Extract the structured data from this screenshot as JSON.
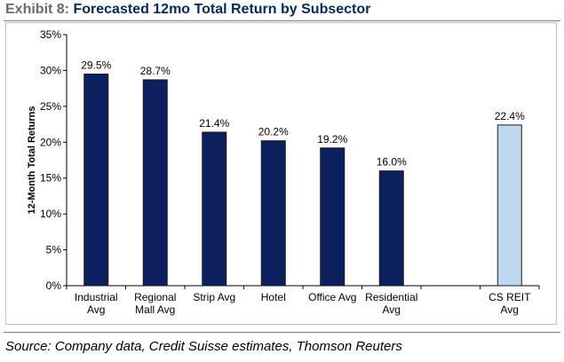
{
  "header": {
    "exhibit_label": "Exhibit 8:",
    "title": "Forecasted 12mo Total Return by Subsector"
  },
  "footer": {
    "source": "Source: Company data, Credit Suisse estimates, Thomson Reuters"
  },
  "chart_data": {
    "type": "bar",
    "title": "Forecasted 12mo Total Return by Subsector",
    "xlabel": "",
    "ylabel": "12-Month Total Returns",
    "ylim": [
      0,
      35
    ],
    "yticks": [
      "0%",
      "5%",
      "10%",
      "15%",
      "20%",
      "25%",
      "30%",
      "35%"
    ],
    "grid": false,
    "categories": [
      [
        "Industrial",
        "Avg"
      ],
      [
        "Regional",
        "Mall Avg"
      ],
      [
        "Strip Avg"
      ],
      [
        "Hotel"
      ],
      [
        "Office Avg"
      ],
      [
        "Residential",
        "Avg"
      ],
      [],
      [
        "CS REIT",
        "Avg"
      ]
    ],
    "values": [
      29.5,
      28.7,
      21.4,
      20.2,
      19.2,
      16.0,
      null,
      22.4
    ],
    "data_labels": [
      "29.5%",
      "28.7%",
      "21.4%",
      "20.2%",
      "19.2%",
      "16.0%",
      "",
      "22.4%"
    ],
    "colors": [
      "#0c1f5e",
      "#0c1f5e",
      "#0c1f5e",
      "#0c1f5e",
      "#0c1f5e",
      "#0c1f5e",
      "",
      "#bdd7ee"
    ],
    "bar_stroke": "#1a1a1a"
  }
}
